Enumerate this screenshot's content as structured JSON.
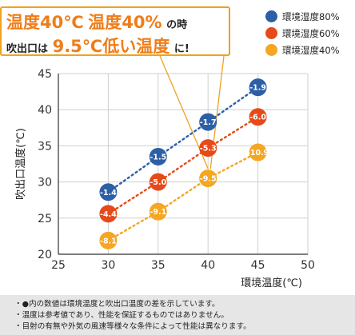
{
  "callout": {
    "line1": [
      "温度40℃",
      "温度40%",
      "の時"
    ],
    "line2": [
      "吹出口は",
      "9.5℃低い温度",
      "に!"
    ]
  },
  "legend": [
    {
      "label": "環境湿度80%",
      "color": "#2d5fa6"
    },
    {
      "label": "環境湿度60%",
      "color": "#e64a19"
    },
    {
      "label": "環境湿度40%",
      "color": "#f5a623"
    }
  ],
  "chart_data": {
    "type": "scatter",
    "xlabel": "環境温度(℃)",
    "ylabel": "吹出口温度(℃)",
    "xlim": [
      25,
      50
    ],
    "ylim": [
      20,
      45
    ],
    "xticks": [
      "25",
      "30",
      "35",
      "40",
      "45",
      "50"
    ],
    "yticks": [
      "20",
      "25",
      "30",
      "35",
      "40",
      "45"
    ],
    "grid": true,
    "series": [
      {
        "name": "環境湿度80%",
        "color": "#2d5fa6",
        "x": [
          30,
          35,
          40,
          45
        ],
        "y": [
          28.6,
          33.5,
          38.3,
          43.1
        ],
        "labels": [
          "-1.4",
          "-1.5",
          "-1.7",
          "-1.9"
        ]
      },
      {
        "name": "環境湿度60%",
        "color": "#e64a19",
        "x": [
          30,
          35,
          40,
          45
        ],
        "y": [
          25.6,
          30.0,
          34.7,
          39.0
        ],
        "labels": [
          "-4.4",
          "-5.0",
          "-5.3",
          "-6.0"
        ]
      },
      {
        "name": "環境湿度40%",
        "color": "#f5a623",
        "x": [
          30,
          35,
          40,
          45
        ],
        "y": [
          21.9,
          25.9,
          30.5,
          34.1
        ],
        "labels": [
          "-8.1",
          "-9.1",
          "-9.5",
          "-10.9"
        ]
      }
    ]
  },
  "notes": [
    "・●内の数値は環境温度と吹出口温度の差を示しています。",
    "・温度は参考値であり、性能を保証するものではありません。",
    "・目射の有無や外気の風速等様々な条件によって性能は異なります。"
  ]
}
